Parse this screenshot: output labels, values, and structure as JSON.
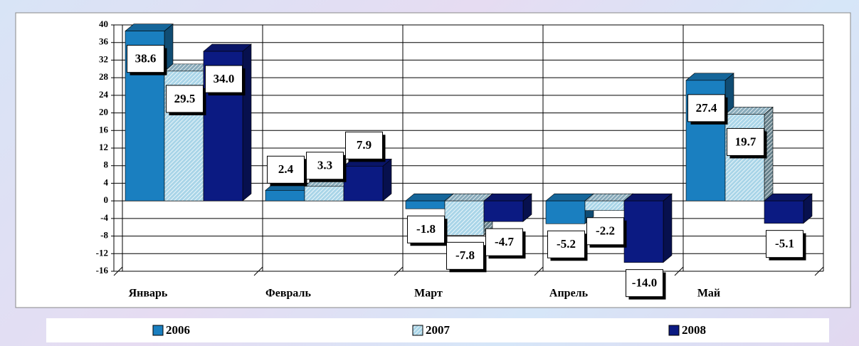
{
  "chart_data": {
    "type": "bar3d",
    "categories": [
      "Январь",
      "Февраль",
      "Март",
      "Апрель",
      "Май"
    ],
    "series": [
      {
        "name": "2006",
        "color": "#1a7fc0",
        "values": [
          38.6,
          2.4,
          -1.8,
          -5.2,
          27.4
        ],
        "value_labels": [
          "38.6",
          "2.4",
          "-1.8",
          "-5.2",
          "27.4"
        ]
      },
      {
        "name": "2007",
        "color": "#a9d5e8",
        "hatch": true,
        "values": [
          29.5,
          3.3,
          -7.8,
          -2.2,
          19.7
        ],
        "value_labels": [
          "29.5",
          "3.3",
          "-7.8",
          "-2.2",
          "19.7"
        ]
      },
      {
        "name": "2008",
        "color": "#0b1a82",
        "values": [
          34.0,
          7.9,
          -4.7,
          -14.0,
          -5.1
        ],
        "value_labels": [
          "34.0",
          "7.9",
          "-4.7",
          "-14.0",
          "-5.1"
        ]
      }
    ],
    "ylim": [
      -16,
      40
    ],
    "yticks": [
      -16,
      -12,
      -8,
      -4,
      0,
      4,
      8,
      12,
      16,
      20,
      24,
      28,
      32,
      36,
      40
    ],
    "grid": true,
    "legend": "bottom"
  }
}
